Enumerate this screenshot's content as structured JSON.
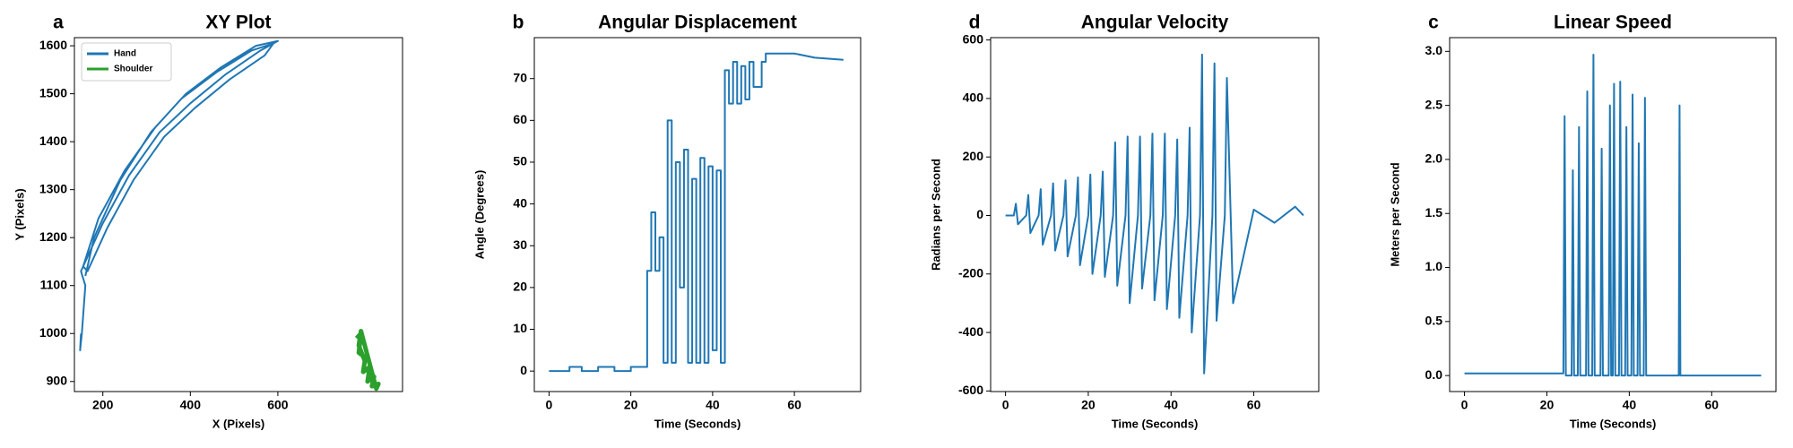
{
  "chart_data": [
    {
      "type": "line",
      "panel_label": "a",
      "title": "XY Plot",
      "xlabel": "X (Pixels)",
      "ylabel": "Y (Pixels)",
      "xlim": [
        135,
        885
      ],
      "ylim": [
        879,
        1617
      ],
      "xticks": [
        200,
        400,
        600
      ],
      "yticks": [
        900,
        1000,
        1100,
        1200,
        1300,
        1400,
        1500,
        1600
      ],
      "legend": "upper left",
      "series": [
        {
          "name": "Hand",
          "color": "#1f77b4",
          "x": [
            150,
            148,
            152,
            160,
            150,
            200,
            260,
            330,
            400,
            480,
            560,
            600,
            550,
            470,
            390,
            320,
            250,
            190,
            155,
            165,
            210,
            270,
            340,
            410,
            490,
            570,
            590,
            540,
            460,
            380,
            310,
            240,
            180,
            160
          ],
          "values": [
            1000,
            965,
            1000,
            1100,
            1130,
            1230,
            1330,
            1420,
            1480,
            1540,
            1590,
            1610,
            1600,
            1555,
            1500,
            1430,
            1340,
            1240,
            1140,
            1130,
            1220,
            1320,
            1410,
            1470,
            1530,
            1580,
            1605,
            1590,
            1545,
            1490,
            1420,
            1320,
            1200,
            1120
          ]
        },
        {
          "name": "Shoulder",
          "color": "#2ca02c",
          "x": [
            780,
            790,
            785,
            800,
            795,
            810,
            805,
            820,
            815,
            830,
            825,
            790,
            785,
            800
          ],
          "values": [
            990,
            1000,
            960,
            950,
            920,
            930,
            900,
            910,
            890,
            895,
            885,
            1005,
            975,
            940
          ]
        }
      ]
    },
    {
      "type": "line",
      "panel_label": "b",
      "title": "Angular Displacement",
      "xlabel": "Time (Seconds)",
      "ylabel": "Angle (Degrees)",
      "xlim": [
        -3.6,
        76.2
      ],
      "ylim": [
        -4.9,
        79.8
      ],
      "xticks": [
        0,
        20,
        40,
        60
      ],
      "yticks": [
        0,
        10,
        20,
        30,
        40,
        50,
        60,
        70
      ],
      "series": [
        {
          "color": "#1f77b4",
          "x": [
            0,
            5,
            5,
            8,
            8,
            12,
            12,
            16,
            16,
            20,
            20,
            24,
            24,
            25,
            25,
            26,
            26,
            27,
            27,
            28,
            28,
            29,
            29,
            30,
            30,
            31,
            31,
            32,
            32,
            33,
            33,
            34,
            34,
            35,
            35,
            36,
            36,
            37,
            37,
            38,
            38,
            39,
            39,
            40,
            40,
            41,
            41,
            42,
            42,
            43,
            43,
            44,
            44,
            45,
            45,
            46,
            46,
            47,
            47,
            48,
            48,
            49,
            49,
            50,
            50,
            52,
            52,
            53,
            53,
            60,
            65,
            72
          ],
          "values": [
            0,
            0,
            1,
            1,
            0,
            0,
            1,
            1,
            0,
            0,
            1,
            1,
            24,
            24,
            38,
            38,
            24,
            24,
            32,
            32,
            2,
            2,
            60,
            60,
            2,
            2,
            50,
            50,
            20,
            20,
            53,
            53,
            2,
            2,
            46,
            46,
            2,
            2,
            51,
            51,
            2,
            2,
            49,
            49,
            5,
            5,
            48,
            48,
            2,
            2,
            72,
            72,
            64,
            64,
            74,
            74,
            64,
            64,
            73,
            73,
            65,
            65,
            74,
            74,
            68,
            68,
            74,
            74,
            76,
            76,
            75,
            74.5
          ]
        }
      ]
    },
    {
      "type": "line",
      "panel_label": "d",
      "title": "Angular Velocity",
      "xlabel": "Time (Seconds)",
      "ylabel": "Radians per Second",
      "xlim": [
        -3.6,
        75.7
      ],
      "ylim": [
        -602,
        608
      ],
      "xticks": [
        0,
        20,
        40,
        60
      ],
      "yticks": [
        -600,
        -400,
        -200,
        0,
        200,
        400,
        600
      ],
      "series": [
        {
          "color": "#1f77b4",
          "x": [
            0,
            2,
            2.5,
            3,
            5,
            5.5,
            6,
            8,
            8.5,
            9,
            11,
            11.5,
            12,
            14,
            14.5,
            15,
            17,
            17.5,
            18,
            20,
            20.5,
            21,
            23,
            23.5,
            24,
            26,
            26.5,
            27,
            29,
            29.5,
            30,
            32,
            32.5,
            33,
            35,
            35.5,
            36,
            38,
            38.5,
            39,
            41,
            41.5,
            42,
            44,
            44.5,
            45,
            47,
            47.5,
            48,
            50,
            50.5,
            51,
            53,
            53.5,
            55,
            60,
            65,
            70,
            72
          ],
          "values": [
            0,
            0,
            40,
            -30,
            0,
            70,
            -60,
            0,
            90,
            -100,
            0,
            110,
            -120,
            0,
            120,
            -140,
            0,
            130,
            -170,
            0,
            140,
            -200,
            0,
            150,
            -210,
            0,
            250,
            -240,
            0,
            270,
            -300,
            0,
            270,
            -250,
            0,
            280,
            -290,
            0,
            280,
            -320,
            0,
            260,
            -350,
            0,
            300,
            -400,
            0,
            550,
            -540,
            0,
            520,
            -360,
            0,
            470,
            -300,
            20,
            -25,
            30,
            0
          ]
        }
      ]
    },
    {
      "type": "line",
      "panel_label": "c",
      "title": "Linear Speed",
      "xlabel": "Time (Seconds)",
      "ylabel": "Meters per Second",
      "xlim": [
        -3.6,
        75.6
      ],
      "ylim": [
        -0.148,
        3.127
      ],
      "xticks": [
        0,
        20,
        40,
        60
      ],
      "yticks": [
        {
          "value": 0,
          "label": "0.0"
        },
        0.5,
        {
          "value": 1,
          "label": "1.0"
        },
        1.5,
        {
          "value": 2,
          "label": "2.0"
        },
        2.5,
        {
          "value": 3,
          "label": "3.0"
        }
      ],
      "series": [
        {
          "color": "#1f77b4",
          "x": [
            0,
            24,
            24.3,
            24.6,
            26,
            26.3,
            26.6,
            27.5,
            27.8,
            28.1,
            29.5,
            29.8,
            30.1,
            31,
            31.3,
            31.6,
            33,
            33.3,
            33.6,
            35,
            35.3,
            35.6,
            36,
            36.3,
            36.6,
            37.5,
            37.8,
            38.1,
            39,
            39.3,
            39.6,
            40.5,
            40.8,
            41.1,
            42,
            42.3,
            42.6,
            43.5,
            43.8,
            44.1,
            52,
            52.2,
            52.4,
            72
          ],
          "values": [
            0.02,
            0.02,
            2.4,
            0,
            0,
            1.9,
            0,
            0,
            2.3,
            0,
            0,
            2.63,
            0,
            0,
            2.97,
            0,
            0,
            2.1,
            0,
            0,
            2.5,
            0,
            0,
            2.7,
            0,
            0,
            2.72,
            0,
            0,
            2.3,
            0,
            0,
            2.6,
            0,
            0,
            2.15,
            0,
            0,
            2.57,
            0,
            0,
            2.5,
            0,
            0
          ]
        }
      ]
    }
  ]
}
